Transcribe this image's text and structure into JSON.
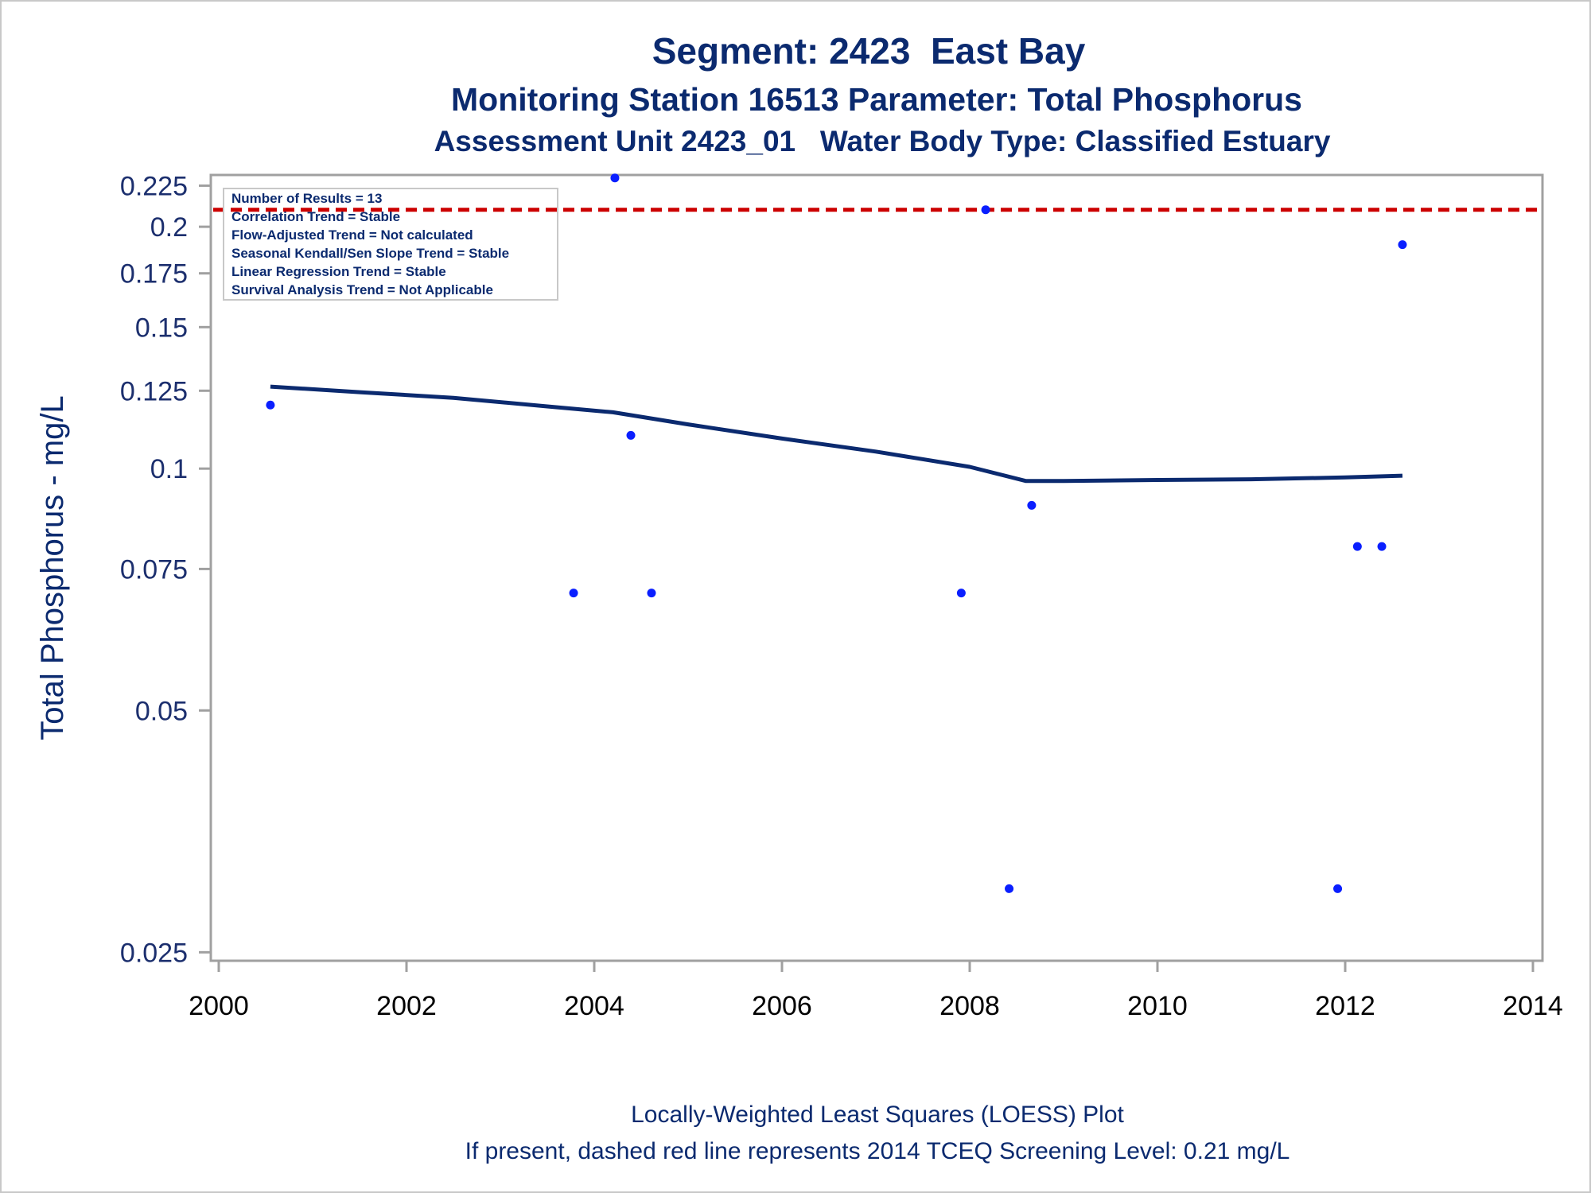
{
  "chart_data": {
    "type": "scatter",
    "title": "Segment: 2423  East Bay",
    "subtitle": "Monitoring Station 16513 Parameter: Total Phosphorus",
    "subtitle2": "Assessment Unit 2423_01   Water Body Type: Classified Estuary",
    "xlabel": "",
    "ylabel": "Total Phosphorus - mg/L",
    "x_ticks": [
      "2000",
      "2002",
      "2004",
      "2006",
      "2008",
      "2010",
      "2012",
      "2014"
    ],
    "y_ticks": [
      "0.025",
      "0.05",
      "0.075",
      "0.1",
      "0.125",
      "0.15",
      "0.175",
      "0.2",
      "0.225"
    ],
    "y_scale": "log",
    "xlim": [
      2000,
      2014
    ],
    "ylim": [
      0.0244,
      0.232
    ],
    "grid": false,
    "points": [
      {
        "x": 2000.55,
        "y": 0.12
      },
      {
        "x": 2003.78,
        "y": 0.07
      },
      {
        "x": 2004.22,
        "y": 0.23
      },
      {
        "x": 2004.39,
        "y": 0.11
      },
      {
        "x": 2004.61,
        "y": 0.07
      },
      {
        "x": 2007.91,
        "y": 0.07
      },
      {
        "x": 2008.17,
        "y": 0.21
      },
      {
        "x": 2008.42,
        "y": 0.03
      },
      {
        "x": 2008.66,
        "y": 0.09
      },
      {
        "x": 2011.92,
        "y": 0.03
      },
      {
        "x": 2012.13,
        "y": 0.08
      },
      {
        "x": 2012.39,
        "y": 0.08
      },
      {
        "x": 2012.61,
        "y": 0.19
      }
    ],
    "loess_line": [
      {
        "x": 2000.55,
        "y": 0.1265
      },
      {
        "x": 2001.5,
        "y": 0.1245
      },
      {
        "x": 2002.5,
        "y": 0.1225
      },
      {
        "x": 2003.5,
        "y": 0.1195
      },
      {
        "x": 2004.2,
        "y": 0.1175
      },
      {
        "x": 2005.0,
        "y": 0.1135
      },
      {
        "x": 2006.0,
        "y": 0.109
      },
      {
        "x": 2007.0,
        "y": 0.105
      },
      {
        "x": 2008.0,
        "y": 0.1005
      },
      {
        "x": 2008.6,
        "y": 0.0965
      },
      {
        "x": 2009.0,
        "y": 0.0965
      },
      {
        "x": 2010.0,
        "y": 0.0968
      },
      {
        "x": 2011.0,
        "y": 0.097
      },
      {
        "x": 2012.0,
        "y": 0.0975
      },
      {
        "x": 2012.61,
        "y": 0.098
      }
    ],
    "screening_level": 0.21,
    "stats": [
      "Number of Results = 13",
      "Correlation Trend = Stable",
      "Flow-Adjusted Trend = Not calculated",
      "Seasonal Kendall/Sen Slope Trend = Stable",
      "Linear Regression Trend = Stable",
      "Survival Analysis Trend = Not Applicable"
    ],
    "footnotes": [
      "Locally-Weighted Least Squares (LOESS) Plot",
      "If present, dashed red line represents 2014 TCEQ Screening Level: 0.21 mg/L"
    ],
    "colors": {
      "points": "#0a1fff",
      "loess": "#0b2a6f",
      "screening_line": "#cc0000",
      "text": "#0b2a6f",
      "axis": "#a0a0a0"
    }
  }
}
